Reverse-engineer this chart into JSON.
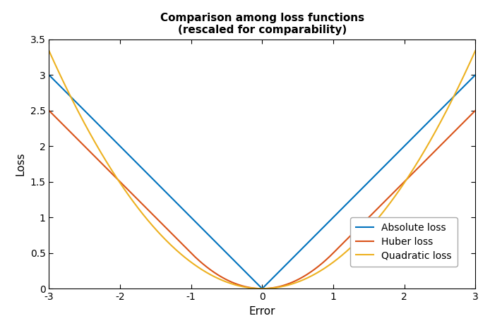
{
  "title_line1": "Comparison among loss functions",
  "title_line2": "(rescaled for comparability)",
  "xlabel": "Error",
  "ylabel": "Loss",
  "xlim": [
    -3,
    3
  ],
  "ylim": [
    0,
    3.5
  ],
  "xticks": [
    -3,
    -2,
    -1,
    0,
    1,
    2,
    3
  ],
  "yticks": [
    0,
    0.5,
    1.0,
    1.5,
    2.0,
    2.5,
    3.0,
    3.5
  ],
  "x_start": -3,
  "x_end": 3,
  "n_points": 1000,
  "huber_delta": 1.0,
  "quad_scale": 0.3711,
  "line_colors": {
    "absolute": "#0072BD",
    "huber": "#D95319",
    "quadratic": "#EDB120"
  },
  "line_width": 1.5,
  "legend_labels": [
    "Absolute loss",
    "Huber loss",
    "Quadratic loss"
  ],
  "background_color": "#FFFFFF",
  "title_fontsize": 11,
  "axis_fontsize": 11,
  "tick_fontsize": 10,
  "legend_fontsize": 10
}
